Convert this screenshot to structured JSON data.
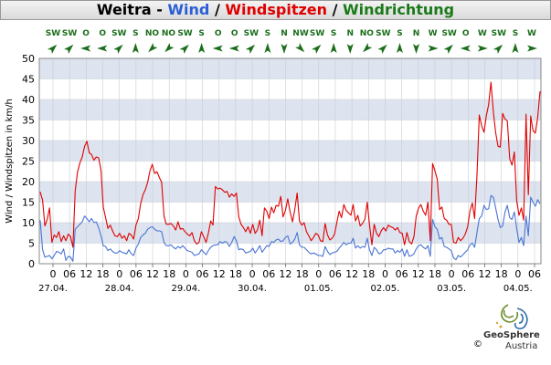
{
  "title": {
    "station": "Weitra",
    "sep1": " - ",
    "wind": "Wind",
    "sep2": " / ",
    "gusts": "Windspitzen",
    "sep3": " / ",
    "direction": "Windrichtung",
    "wind_color": "#2b5fd6",
    "gusts_color": "#e00000",
    "direction_color": "#1a7a1a"
  },
  "logo": {
    "name": "GeoSphere",
    "sub": "Austria",
    "copyright": "©"
  },
  "chart_data": {
    "type": "line",
    "ylabel": "Wind / Windspitzen in km/h",
    "ylim": [
      0,
      50
    ],
    "yticks": [
      0,
      5,
      10,
      15,
      20,
      25,
      30,
      35,
      40,
      45,
      50
    ],
    "x_start": "2024-04-26T18:00",
    "x_end": "2024-05-04T09:00",
    "hour_ticks": [
      "0",
      "06",
      "12",
      "18",
      "0",
      "06",
      "12",
      "18",
      "0",
      "06",
      "12",
      "18",
      "0",
      "06",
      "12",
      "18",
      "0",
      "06",
      "12",
      "18",
      "0",
      "06",
      "12",
      "18",
      "0",
      "06",
      "12",
      "18",
      "0",
      "06"
    ],
    "date_labels": [
      "27.04.",
      "28.04.",
      "29.04.",
      "30.04.",
      "01.05.",
      "02.05.",
      "03.05.",
      "04.05."
    ],
    "direction_labels": [
      "SW",
      "SW",
      "O",
      "O",
      "SW",
      "S",
      "NO",
      "NO",
      "SW",
      "S",
      "O",
      "O",
      "SW",
      "S",
      "N",
      "NW",
      "SW",
      "S",
      "N",
      "NO",
      "SW",
      "S",
      "N",
      "W",
      "SW",
      "O",
      "W",
      "SW",
      "S",
      "W"
    ],
    "direction_colors": {
      "wind_line": "#4a74d4",
      "gust_line": "#e00000",
      "arrow": "#1a6e1a",
      "band": "#dde4ef"
    },
    "series": [
      {
        "name": "Windspitzen",
        "color": "#e00000",
        "values": [
          17.5,
          15.5,
          9.2,
          10.8,
          13.6,
          5.2,
          7.0,
          6.4,
          7.8,
          5.4,
          6.8,
          5.6,
          7.2,
          6.6,
          4.0,
          17.8,
          22.4,
          24.6,
          26.0,
          28.6,
          29.8,
          27.0,
          26.6,
          25.2,
          26.0,
          25.8,
          22.8,
          13.8,
          11.2,
          8.6,
          9.4,
          8.0,
          6.8,
          6.6,
          7.4,
          6.2,
          6.8,
          5.6,
          7.4,
          7.0,
          6.0,
          9.4,
          11.0,
          14.6,
          16.8,
          18.0,
          19.8,
          22.6,
          24.2,
          22.0,
          22.4,
          21.0,
          19.8,
          11.6,
          9.6,
          9.6,
          9.8,
          9.2,
          8.2,
          10.2,
          8.4,
          8.6,
          7.8,
          7.2,
          6.8,
          7.6,
          5.6,
          4.8,
          5.2,
          7.8,
          6.6,
          5.2,
          7.4,
          10.4,
          9.4,
          18.8,
          18.2,
          18.4,
          18.0,
          17.4,
          17.6,
          16.2,
          17.0,
          16.4,
          17.2,
          11.4,
          9.6,
          8.8,
          7.8,
          9.0,
          7.4,
          9.6,
          7.4,
          8.2,
          10.6,
          6.8,
          13.6,
          12.8,
          11.0,
          13.8,
          12.4,
          14.2,
          14.0,
          16.4,
          11.4,
          13.0,
          15.8,
          12.6,
          10.2,
          13.2,
          17.2,
          10.4,
          9.4,
          10.0,
          7.8,
          6.8,
          5.6,
          6.4,
          7.4,
          7.0,
          5.6,
          5.4,
          9.8,
          7.0,
          5.8,
          6.2,
          7.2,
          10.0,
          12.8,
          11.2,
          14.4,
          13.0,
          12.4,
          11.8,
          14.4,
          10.4,
          11.8,
          9.2,
          9.8,
          10.8,
          15.0,
          9.4,
          4.6,
          9.6,
          7.4,
          6.6,
          8.0,
          8.8,
          8.0,
          9.4,
          9.0,
          8.8,
          8.2,
          8.8,
          7.6,
          7.4,
          4.6,
          7.6,
          5.4,
          4.8,
          6.6,
          11.6,
          13.6,
          14.4,
          12.8,
          11.8,
          15.0,
          5.6,
          24.4,
          22.6,
          20.6,
          13.2,
          13.8,
          11.0,
          10.6,
          9.6,
          9.6,
          5.2,
          5.0,
          6.4,
          5.6,
          6.2,
          7.2,
          9.0,
          12.8,
          14.8,
          11.0,
          21.6,
          36.2,
          33.6,
          32.0,
          36.0,
          38.8,
          44.2,
          37.0,
          32.0,
          28.6,
          28.4,
          36.6,
          35.2,
          34.8,
          25.6,
          24.0,
          27.2,
          15.4,
          11.8,
          13.6,
          10.6,
          36.4,
          16.8,
          36.0,
          32.4,
          31.8,
          35.6,
          42.0
        ]
      },
      {
        "name": "Wind",
        "color": "#4a74d4",
        "values": [
          10.6,
          3.4,
          1.6,
          1.8,
          2.0,
          1.2,
          2.0,
          3.0,
          2.8,
          2.4,
          3.6,
          0.8,
          1.8,
          1.6,
          0.6,
          8.4,
          9.0,
          9.6,
          10.2,
          11.6,
          11.0,
          10.2,
          11.0,
          10.0,
          10.2,
          8.8,
          6.8,
          4.4,
          4.2,
          3.2,
          3.6,
          3.0,
          2.6,
          2.6,
          3.2,
          2.8,
          2.6,
          2.4,
          3.4,
          2.4,
          2.0,
          3.8,
          4.8,
          6.4,
          7.0,
          7.4,
          8.4,
          8.8,
          9.0,
          8.4,
          8.0,
          8.0,
          7.8,
          5.2,
          4.4,
          4.4,
          4.6,
          4.0,
          3.6,
          4.2,
          3.8,
          4.4,
          3.8,
          3.2,
          3.0,
          2.8,
          2.0,
          2.2,
          2.4,
          3.4,
          2.8,
          2.2,
          3.2,
          4.0,
          4.4,
          4.6,
          4.6,
          5.4,
          5.0,
          5.4,
          5.2,
          4.2,
          5.2,
          6.6,
          5.6,
          3.4,
          3.6,
          3.4,
          2.6,
          2.8,
          3.0,
          3.8,
          2.6,
          3.4,
          4.4,
          2.8,
          3.6,
          4.4,
          4.2,
          5.4,
          5.2,
          5.8,
          6.0,
          5.4,
          5.6,
          6.4,
          6.8,
          4.8,
          5.2,
          6.0,
          7.6,
          4.6,
          4.0,
          4.0,
          3.4,
          2.8,
          2.4,
          2.6,
          2.4,
          2.0,
          2.0,
          1.8,
          4.2,
          3.0,
          2.2,
          2.6,
          2.8,
          3.0,
          3.8,
          4.4,
          5.2,
          4.6,
          5.0,
          5.0,
          6.2,
          3.8,
          4.4,
          3.8,
          4.2,
          4.0,
          6.2,
          3.4,
          2.0,
          4.0,
          3.4,
          2.4,
          2.6,
          3.4,
          3.4,
          3.8,
          3.6,
          3.6,
          2.6,
          3.2,
          2.8,
          3.6,
          1.8,
          3.4,
          1.8,
          2.0,
          2.4,
          3.6,
          4.4,
          4.6,
          4.0,
          3.6,
          4.4,
          1.8,
          10.8,
          9.0,
          8.4,
          6.0,
          6.4,
          4.2,
          4.0,
          3.6,
          3.2,
          1.4,
          1.0,
          2.0,
          1.6,
          2.2,
          2.8,
          3.4,
          4.6,
          5.0,
          4.0,
          7.6,
          11.0,
          11.6,
          14.2,
          13.2,
          13.4,
          16.6,
          16.2,
          13.6,
          10.8,
          8.8,
          9.2,
          12.6,
          14.2,
          11.2,
          10.8,
          12.6,
          8.6,
          5.2,
          6.4,
          4.4,
          11.6,
          6.8,
          16.2,
          15.0,
          14.0,
          15.6,
          14.6
        ]
      }
    ]
  }
}
